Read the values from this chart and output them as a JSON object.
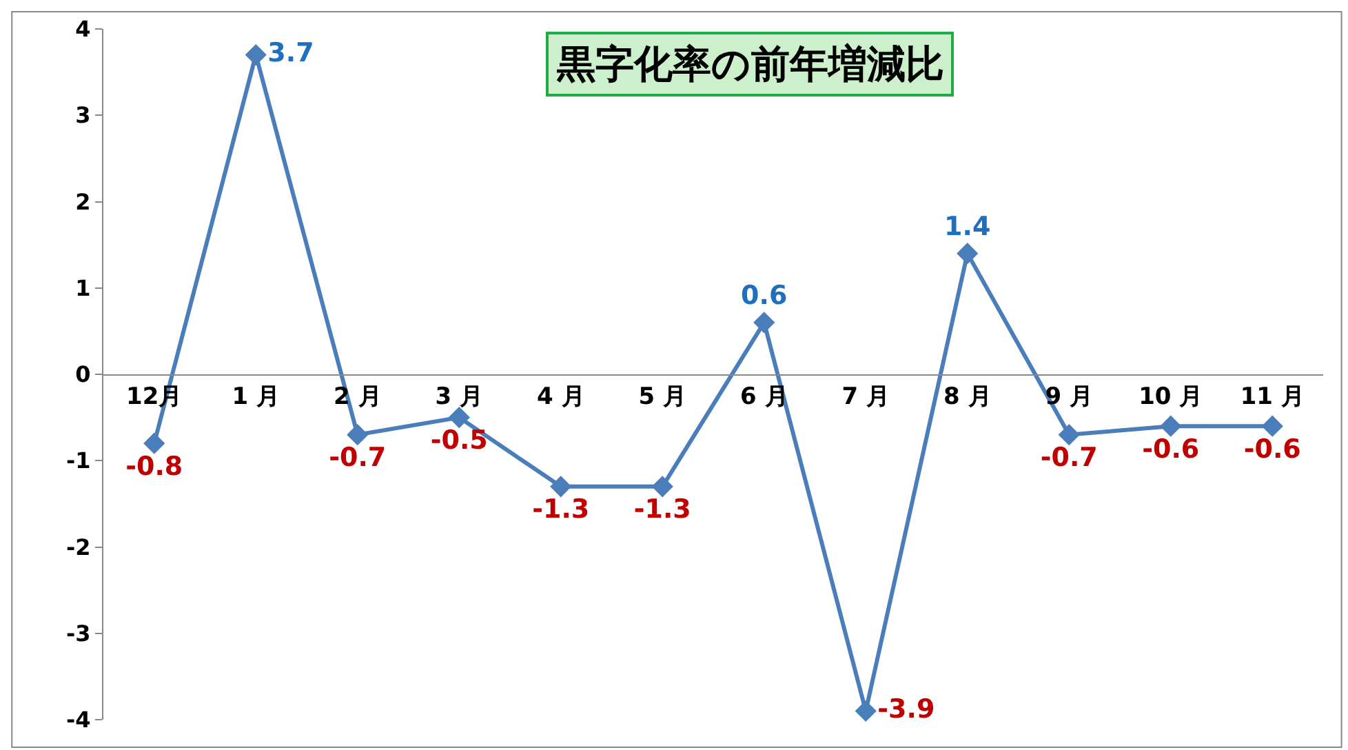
{
  "chart_data": {
    "type": "line",
    "title": "黒字化率の前年増減比",
    "categories": [
      "12月",
      "1 月",
      "2 月",
      "3 月",
      "4 月",
      "5 月",
      "6 月",
      "7 月",
      "8 月",
      "9 月",
      "10 月",
      "11 月"
    ],
    "series": [
      {
        "color": "#4a7ebb",
        "values": [
          -0.8,
          3.7,
          -0.7,
          -0.5,
          -1.3,
          -1.3,
          0.6,
          -3.9,
          1.4,
          -0.7,
          -0.6,
          -0.6
        ]
      }
    ],
    "ylim": [
      -4,
      4
    ],
    "yticks": [
      -4,
      -3,
      -2,
      -1,
      0,
      1,
      2,
      3,
      4
    ],
    "marker": "diamond",
    "line_style": "solid",
    "data_labels": true,
    "legend": false
  }
}
